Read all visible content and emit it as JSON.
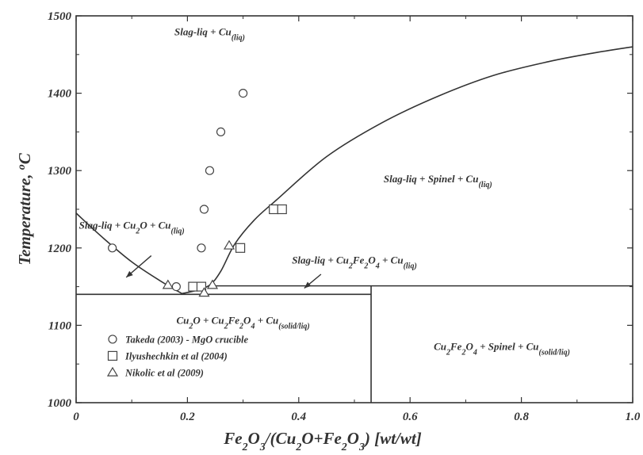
{
  "chart_data": {
    "type": "scatter",
    "xlim": [
      0,
      1.0
    ],
    "ylim": [
      1000,
      1500
    ],
    "x_ticks": [
      {
        "value": 0,
        "label": "0"
      },
      {
        "value": 0.2,
        "label": "0.2"
      },
      {
        "value": 0.4,
        "label": "0.4"
      },
      {
        "value": 0.6,
        "label": "0.6"
      },
      {
        "value": 0.8,
        "label": "0.8"
      },
      {
        "value": 1.0,
        "label": "1.0"
      }
    ],
    "y_ticks": [
      {
        "value": 1000,
        "label": "1000"
      },
      {
        "value": 1100,
        "label": "1100"
      },
      {
        "value": 1200,
        "label": "1200"
      },
      {
        "value": 1300,
        "label": "1300"
      },
      {
        "value": 1400,
        "label": "1400"
      },
      {
        "value": 1500,
        "label": "1500"
      }
    ],
    "xlabel": {
      "parts": [
        {
          "t": "Fe"
        },
        {
          "t": "2",
          "sub": true
        },
        {
          "t": "O"
        },
        {
          "t": "3",
          "sub": true
        },
        {
          "t": "/(Cu"
        },
        {
          "t": "2",
          "sub": true
        },
        {
          "t": "O+Fe"
        },
        {
          "t": "2",
          "sub": true
        },
        {
          "t": "O"
        },
        {
          "t": "3",
          "sub": true
        },
        {
          "t": ") [wt/wt]"
        }
      ]
    },
    "ylabel": {
      "parts": [
        {
          "t": "Temperature, "
        },
        {
          "t": "o",
          "sup": true
        },
        {
          "t": "C"
        }
      ]
    },
    "phase_lines": [
      {
        "name": "liquidus-left",
        "points": [
          [
            0,
            1245
          ],
          [
            0.05,
            1212
          ],
          [
            0.1,
            1182
          ],
          [
            0.15,
            1158
          ],
          [
            0.19,
            1141
          ]
        ]
      },
      {
        "name": "liquidus-right",
        "points": [
          [
            0.19,
            1141
          ],
          [
            0.215,
            1145
          ],
          [
            0.24,
            1152
          ],
          [
            0.26,
            1170
          ],
          [
            0.285,
            1205
          ],
          [
            0.32,
            1236
          ],
          [
            0.36,
            1262
          ],
          [
            0.45,
            1318
          ],
          [
            0.55,
            1362
          ],
          [
            0.65,
            1396
          ],
          [
            0.75,
            1423
          ],
          [
            0.85,
            1441
          ],
          [
            0.93,
            1452
          ],
          [
            1.0,
            1460
          ]
        ]
      },
      {
        "name": "solidus-1140",
        "points": [
          [
            0,
            1140
          ],
          [
            0.53,
            1140
          ]
        ]
      },
      {
        "name": "line-1150",
        "points": [
          [
            0.24,
            1151
          ],
          [
            1.0,
            1151
          ]
        ]
      },
      {
        "name": "boundary-vertical",
        "points": [
          [
            0.53,
            1000
          ],
          [
            0.53,
            1151
          ]
        ]
      }
    ],
    "series": [
      {
        "name": "Takeda (2003) - MgO crucible",
        "marker": "circle",
        "points": [
          [
            0.065,
            1200
          ],
          [
            0.18,
            1150
          ],
          [
            0.225,
            1200
          ],
          [
            0.23,
            1250
          ],
          [
            0.24,
            1300
          ],
          [
            0.26,
            1350
          ],
          [
            0.3,
            1400
          ]
        ]
      },
      {
        "name": "Ilyushechkin et al (2004)",
        "marker": "square",
        "points": [
          [
            0.21,
            1150
          ],
          [
            0.225,
            1150
          ],
          [
            0.295,
            1200
          ],
          [
            0.355,
            1250
          ],
          [
            0.37,
            1250
          ]
        ]
      },
      {
        "name": "Nikolic et al (2009)",
        "marker": "triangle",
        "points": [
          [
            0.165,
            1152
          ],
          [
            0.23,
            1142
          ],
          [
            0.245,
            1152
          ],
          [
            0.275,
            1203
          ]
        ]
      }
    ],
    "region_labels": [
      {
        "name": "region-slag-cu",
        "pos": [
          0.24,
          1475
        ],
        "parts": [
          {
            "t": "Slag-liq + Cu"
          },
          {
            "t": "(liq)",
            "sub": true
          }
        ]
      },
      {
        "name": "region-slag-spinel-cu",
        "pos": [
          0.65,
          1285
        ],
        "parts": [
          {
            "t": "Slag-liq + Spinel + Cu"
          },
          {
            "t": "(liq)",
            "sub": true
          }
        ]
      },
      {
        "name": "region-slag-cu2o-cu",
        "pos": [
          0.1,
          1225
        ],
        "parts": [
          {
            "t": "Slag-liq + Cu"
          },
          {
            "t": "2",
            "sub": true
          },
          {
            "t": "O + Cu"
          },
          {
            "t": "(liq)",
            "sub": true
          }
        ]
      },
      {
        "name": "region-slag-cufe2o4-cu",
        "pos": [
          0.5,
          1180
        ],
        "parts": [
          {
            "t": "Slag-liq + Cu"
          },
          {
            "t": "2",
            "sub": true
          },
          {
            "t": "Fe"
          },
          {
            "t": "2",
            "sub": true
          },
          {
            "t": "O"
          },
          {
            "t": "4",
            "sub": true
          },
          {
            "t": " + Cu"
          },
          {
            "t": "(liq)",
            "sub": true
          }
        ]
      },
      {
        "name": "region-cu2o-cufe2o4-cu",
        "pos": [
          0.3,
          1102
        ],
        "parts": [
          {
            "t": "Cu"
          },
          {
            "t": "2",
            "sub": true
          },
          {
            "t": "O + Cu"
          },
          {
            "t": "2",
            "sub": true
          },
          {
            "t": "Fe"
          },
          {
            "t": "2",
            "sub": true
          },
          {
            "t": "O"
          },
          {
            "t": "4",
            "sub": true
          },
          {
            "t": " + Cu"
          },
          {
            "t": "(solid/liq)",
            "sub": true
          }
        ]
      },
      {
        "name": "region-cufe2o4-spinel-cu",
        "pos": [
          0.765,
          1068
        ],
        "parts": [
          {
            "t": "Cu"
          },
          {
            "t": "2",
            "sub": true
          },
          {
            "t": "Fe"
          },
          {
            "t": "2",
            "sub": true
          },
          {
            "t": "O"
          },
          {
            "t": "4",
            "sub": true
          },
          {
            "t": " + Spinel + Cu"
          },
          {
            "t": "(solid/liq)",
            "sub": true
          }
        ]
      }
    ],
    "arrows": [
      {
        "name": "arrow-left",
        "from": [
          0.135,
          1190
        ],
        "to": [
          0.09,
          1162
        ]
      },
      {
        "name": "arrow-right",
        "from": [
          0.44,
          1166
        ],
        "to": [
          0.41,
          1148
        ]
      }
    ],
    "legend": {
      "placement": "bottom-left"
    }
  }
}
